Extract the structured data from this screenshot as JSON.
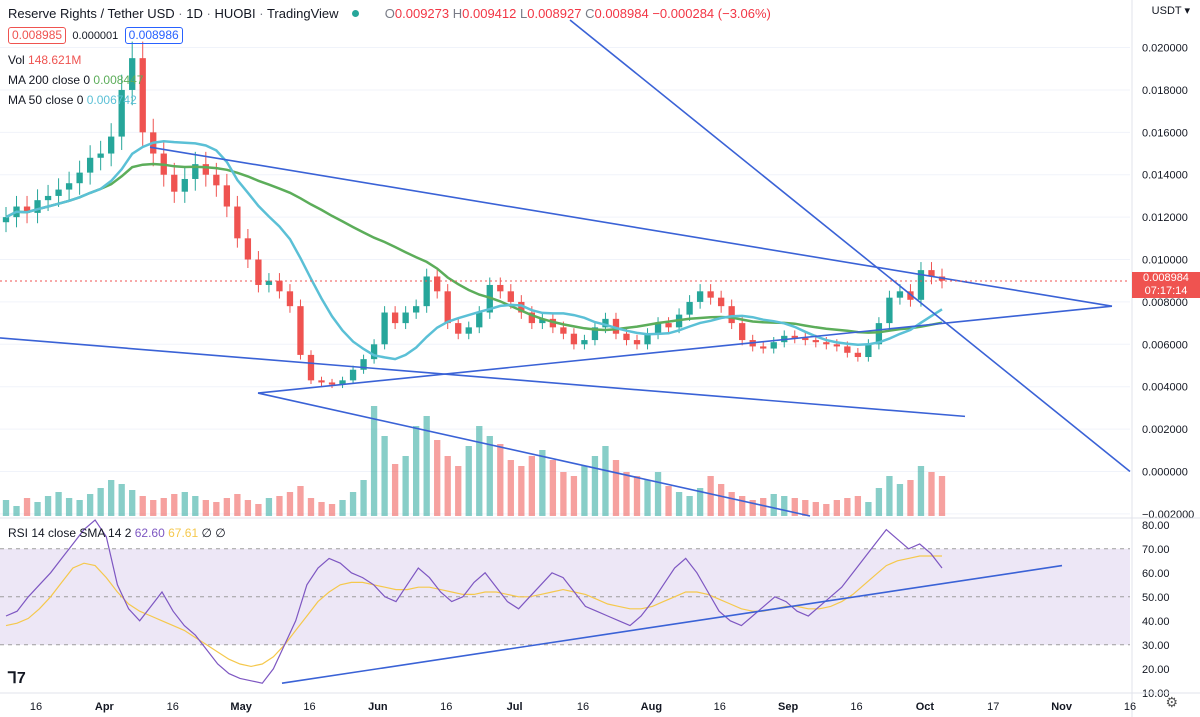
{
  "header": {
    "symbol": "Reserve Rights / Tether USD",
    "interval": "1D",
    "exchange": "HUOBI",
    "platform": "TradingView",
    "open_label": "O",
    "open": "0.009273",
    "high_label": "H",
    "high": "0.009412",
    "low_label": "L",
    "low": "0.008927",
    "close_label": "C",
    "close": "0.008984",
    "change": "−0.000284 (−3.06%)",
    "sell": "0.008985",
    "spread": "0.000001",
    "buy": "0.008986"
  },
  "indicators": {
    "vol_label": "Vol",
    "vol_value": "148.621M",
    "ma200_label": "MA 200 close 0",
    "ma200_value": "0.008447",
    "ma50_label": "MA 50 close 0",
    "ma50_value": "0.006742",
    "rsi_label": "RSI 14 close SMA 14 2",
    "rsi_value": "62.60",
    "rsi_sma_value": "67.61",
    "rsi_extra": "∅ ∅"
  },
  "axis": {
    "currency": "USDT",
    "last_price": "0.008984",
    "countdown": "07:17:14"
  },
  "colors": {
    "up": "#26a69a",
    "down": "#ef5350",
    "ma200": "#5cad5a",
    "ma50": "#5bc0d6",
    "trendline": "#3a62d6",
    "rsi": "#7e57c2",
    "rsi_sma": "#f5c84c",
    "rsi_band": "#ede7f6"
  },
  "chart_data": [
    {
      "type": "candlestick",
      "title": "Reserve Rights / Tether USD · 1D · HUOBI",
      "x_ticks": [
        "16",
        "Apr",
        "16",
        "May",
        "16",
        "Jun",
        "16",
        "Jul",
        "16",
        "Aug",
        "16",
        "Sep",
        "16",
        "Oct",
        "17",
        "Nov",
        "16"
      ],
      "y_ticks": [
        "0.020000",
        "0.018000",
        "0.016000",
        "0.014000",
        "0.012000",
        "0.010000",
        "0.008000",
        "0.006000",
        "0.004000",
        "0.002000",
        "0.000000",
        "−0.002000"
      ],
      "ylim": [
        -0.0021,
        0.0213
      ],
      "grid": true,
      "close_approx": [
        0.012,
        0.0125,
        0.0122,
        0.0128,
        0.013,
        0.0133,
        0.0136,
        0.0141,
        0.0148,
        0.015,
        0.0158,
        0.018,
        0.0195,
        0.016,
        0.015,
        0.014,
        0.0132,
        0.0138,
        0.0145,
        0.014,
        0.0135,
        0.0125,
        0.011,
        0.01,
        0.0088,
        0.009,
        0.0085,
        0.0078,
        0.0055,
        0.0043,
        0.0042,
        0.0041,
        0.0043,
        0.0048,
        0.0053,
        0.006,
        0.0075,
        0.007,
        0.0075,
        0.0078,
        0.0092,
        0.0085,
        0.007,
        0.0065,
        0.0068,
        0.0075,
        0.0088,
        0.0085,
        0.008,
        0.0075,
        0.007,
        0.0072,
        0.0068,
        0.0065,
        0.006,
        0.0062,
        0.0068,
        0.0072,
        0.0065,
        0.0062,
        0.006,
        0.0065,
        0.007,
        0.0068,
        0.0074,
        0.008,
        0.0085,
        0.0082,
        0.0078,
        0.007,
        0.0062,
        0.0059,
        0.0058,
        0.0061,
        0.0064,
        0.0063,
        0.0062,
        0.0061,
        0.006,
        0.0059,
        0.0056,
        0.0054,
        0.006,
        0.007,
        0.0082,
        0.0085,
        0.0081,
        0.0095,
        0.0092,
        0.009
      ],
      "volume_approx": [
        8,
        5,
        9,
        7,
        10,
        12,
        9,
        8,
        11,
        14,
        18,
        16,
        13,
        10,
        8,
        9,
        11,
        12,
        10,
        8,
        7,
        9,
        11,
        8,
        6,
        9,
        10,
        12,
        15,
        9,
        7,
        6,
        8,
        12,
        18,
        55,
        40,
        26,
        30,
        45,
        50,
        38,
        30,
        25,
        35,
        45,
        40,
        36,
        28,
        25,
        30,
        33,
        28,
        22,
        20,
        25,
        30,
        35,
        28,
        22,
        20,
        18,
        22,
        15,
        12,
        10,
        14,
        20,
        16,
        12,
        10,
        8,
        9,
        11,
        10,
        9,
        8,
        7,
        6,
        8,
        9,
        10,
        7,
        14,
        20,
        16,
        18,
        25,
        22,
        20
      ]
    },
    {
      "type": "line",
      "title": "RSI 14 close SMA 14 2",
      "y_ticks": [
        "80.00",
        "70.00",
        "60.00",
        "50.00",
        "40.00",
        "30.00",
        "20.00",
        "10.00"
      ],
      "ylim": [
        7,
        82
      ],
      "band": [
        30,
        70
      ],
      "series": [
        {
          "name": "RSI",
          "values": [
            42,
            44,
            50,
            55,
            60,
            66,
            72,
            78,
            82,
            75,
            55,
            45,
            40,
            46,
            52,
            44,
            38,
            34,
            28,
            22,
            18,
            16,
            15,
            14,
            20,
            30,
            40,
            55,
            62,
            66,
            64,
            60,
            58,
            55,
            50,
            48,
            55,
            62,
            58,
            52,
            48,
            50,
            56,
            60,
            54,
            48,
            45,
            50,
            55,
            60,
            58,
            52,
            46,
            44,
            42,
            40,
            38,
            42,
            48,
            55,
            62,
            66,
            60,
            52,
            44,
            40,
            38,
            42,
            46,
            50,
            48,
            44,
            42,
            46,
            50,
            54,
            60,
            66,
            72,
            78,
            74,
            70,
            72,
            68,
            62
          ]
        },
        {
          "name": "SMA",
          "values": [
            38,
            39,
            41,
            45,
            50,
            56,
            62,
            64,
            63,
            58,
            52,
            47,
            44,
            42,
            40,
            38,
            36,
            33,
            30,
            27,
            24,
            22,
            21,
            22,
            25,
            30,
            36,
            42,
            48,
            52,
            55,
            56,
            56,
            55,
            54,
            53,
            53,
            54,
            54,
            53,
            52,
            51,
            51,
            52,
            52,
            51,
            50,
            50,
            51,
            52,
            53,
            52,
            51,
            49,
            47,
            46,
            45,
            45,
            46,
            48,
            50,
            52,
            52,
            51,
            49,
            47,
            45,
            44,
            44,
            45,
            46,
            46,
            45,
            45,
            46,
            48,
            51,
            55,
            59,
            63,
            65,
            66,
            67,
            67,
            67
          ]
        }
      ]
    }
  ]
}
